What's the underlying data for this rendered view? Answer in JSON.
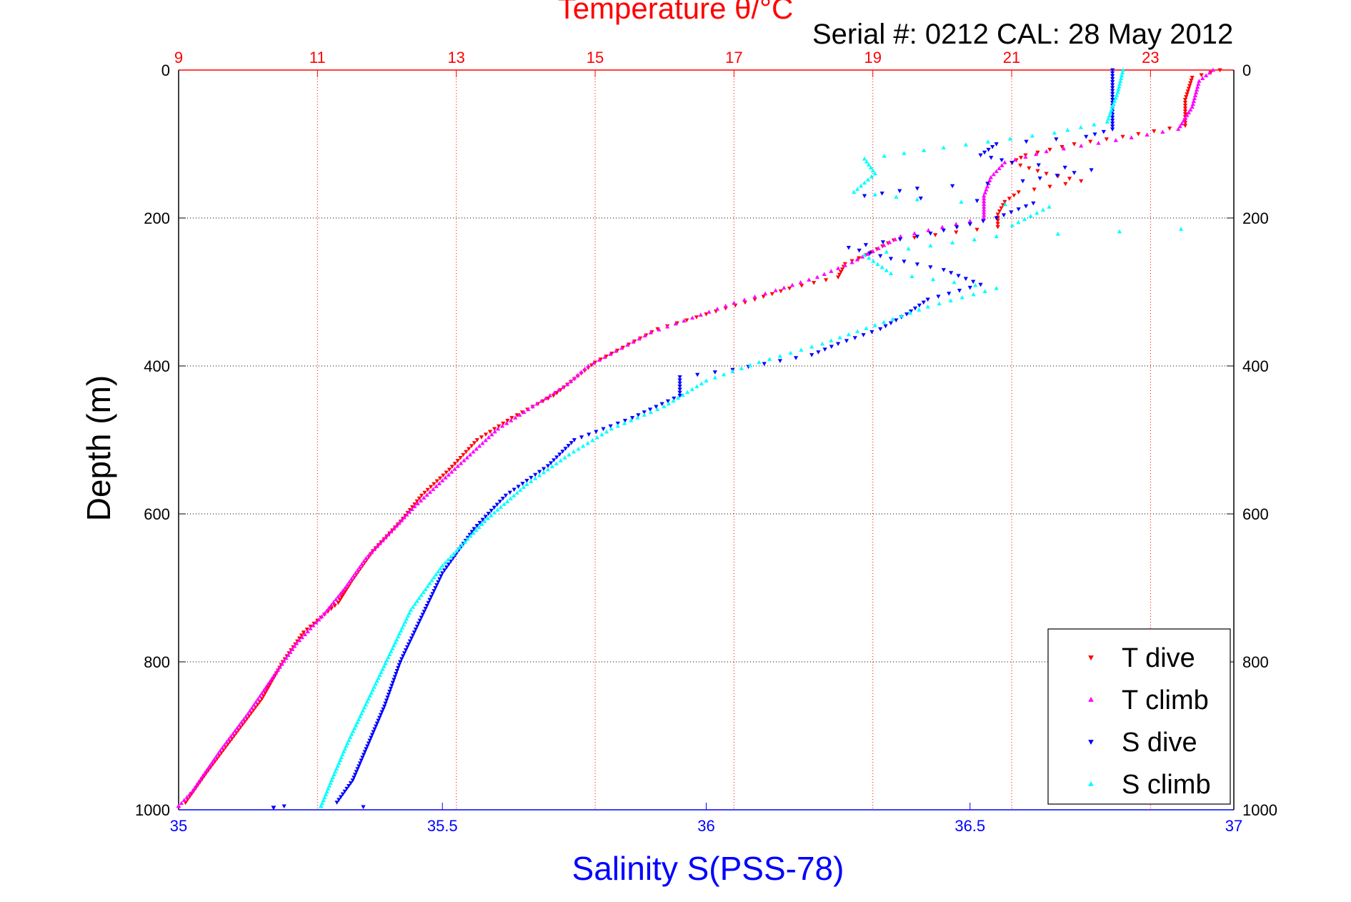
{
  "chart_data": {
    "type": "scatter",
    "top_title": "Temperature θ/°C",
    "serial_text": "Serial #: 0212  CAL: 28 May 2012",
    "ylabel": "Depth (m)",
    "xlabel": "Salinity S(PSS-78)",
    "y_axis": {
      "label": "Depth (m)",
      "range": [
        0,
        1000
      ],
      "reversed": true,
      "ticks": [
        "0",
        "200",
        "400",
        "600",
        "800",
        "1000"
      ]
    },
    "x_axis_bottom": {
      "label": "Salinity S(PSS-78)",
      "range": [
        35,
        37
      ],
      "ticks": [
        "35",
        "35.5",
        "36",
        "36.5",
        "37"
      ]
    },
    "x_axis_top": {
      "label": "Temperature θ/°C",
      "range": [
        9,
        24.2
      ],
      "ticks": [
        "9",
        "11",
        "13",
        "15",
        "17",
        "19",
        "21",
        "23"
      ]
    },
    "grid": true,
    "legend_position": "bottom-right",
    "colors": {
      "temperature": "#ff0000",
      "salinity": "#0000ff",
      "grid": "#000000"
    },
    "series": [
      {
        "name": "T dive",
        "axis": "temperature",
        "marker": "triangle-down",
        "color": "#ff0000",
        "points": [
          [
            24.0,
            0
          ],
          [
            23.6,
            10
          ],
          [
            23.5,
            40
          ],
          [
            23.5,
            75
          ],
          [
            22.6,
            90
          ],
          [
            21.9,
            100
          ],
          [
            21.2,
            115
          ],
          [
            21.0,
            125
          ],
          [
            21.5,
            140
          ],
          [
            22.0,
            150
          ],
          [
            21.1,
            165
          ],
          [
            20.9,
            178
          ],
          [
            20.8,
            195
          ],
          [
            20.8,
            212
          ],
          [
            19.3,
            230
          ],
          [
            18.9,
            250
          ],
          [
            18.6,
            262
          ],
          [
            18.5,
            280
          ],
          [
            17.8,
            295
          ],
          [
            17.3,
            310
          ],
          [
            16.6,
            330
          ],
          [
            15.9,
            350
          ],
          [
            15.4,
            375
          ],
          [
            15.0,
            395
          ],
          [
            14.8,
            410
          ],
          [
            14.4,
            440
          ],
          [
            13.8,
            470
          ],
          [
            13.3,
            500
          ],
          [
            12.9,
            540
          ],
          [
            12.5,
            575
          ],
          [
            12.2,
            610
          ],
          [
            11.8,
            650
          ],
          [
            11.5,
            690
          ],
          [
            11.3,
            720
          ],
          [
            10.8,
            760
          ],
          [
            10.5,
            800
          ],
          [
            10.2,
            850
          ],
          [
            9.8,
            900
          ],
          [
            9.4,
            950
          ],
          [
            9.1,
            990
          ]
        ]
      },
      {
        "name": "T climb",
        "axis": "temperature",
        "marker": "triangle-up",
        "color": "#ff00ff",
        "points": [
          [
            23.9,
            0
          ],
          [
            23.7,
            15
          ],
          [
            23.6,
            50
          ],
          [
            23.4,
            80
          ],
          [
            22.5,
            95
          ],
          [
            21.5,
            110
          ],
          [
            20.9,
            125
          ],
          [
            20.7,
            145
          ],
          [
            20.6,
            170
          ],
          [
            20.6,
            200
          ],
          [
            19.4,
            225
          ],
          [
            19.0,
            245
          ],
          [
            18.7,
            260
          ],
          [
            18.2,
            280
          ],
          [
            17.6,
            298
          ],
          [
            17.0,
            315
          ],
          [
            16.4,
            335
          ],
          [
            15.8,
            355
          ],
          [
            15.3,
            380
          ],
          [
            14.9,
            400
          ],
          [
            14.6,
            425
          ],
          [
            14.1,
            455
          ],
          [
            13.6,
            485
          ],
          [
            13.2,
            520
          ],
          [
            12.8,
            555
          ],
          [
            12.4,
            590
          ],
          [
            12.1,
            620
          ],
          [
            11.7,
            660
          ],
          [
            11.4,
            700
          ],
          [
            11.1,
            735
          ],
          [
            10.7,
            775
          ],
          [
            10.4,
            815
          ],
          [
            10.0,
            870
          ],
          [
            9.6,
            920
          ],
          [
            9.2,
            975
          ],
          [
            9.0,
            995
          ]
        ]
      },
      {
        "name": "S dive",
        "axis": "salinity",
        "marker": "triangle-down",
        "color": "#0000ff",
        "points": [
          [
            36.77,
            0
          ],
          [
            36.77,
            40
          ],
          [
            36.77,
            80
          ],
          [
            36.72,
            90
          ],
          [
            36.55,
            100
          ],
          [
            36.52,
            115
          ],
          [
            36.58,
            125
          ],
          [
            36.73,
            135
          ],
          [
            36.6,
            150
          ],
          [
            36.4,
            160
          ],
          [
            36.3,
            170
          ],
          [
            36.62,
            180
          ],
          [
            36.55,
            200
          ],
          [
            36.4,
            225
          ],
          [
            36.27,
            240
          ],
          [
            36.35,
            255
          ],
          [
            36.45,
            270
          ],
          [
            36.52,
            290
          ],
          [
            36.42,
            310
          ],
          [
            36.38,
            330
          ],
          [
            36.33,
            350
          ],
          [
            36.25,
            370
          ],
          [
            36.2,
            385
          ],
          [
            36.05,
            405
          ],
          [
            35.95,
            415
          ],
          [
            35.95,
            440
          ],
          [
            35.86,
            470
          ],
          [
            35.75,
            500
          ],
          [
            35.7,
            535
          ],
          [
            35.62,
            575
          ],
          [
            35.56,
            620
          ],
          [
            35.5,
            680
          ],
          [
            35.46,
            740
          ],
          [
            35.42,
            800
          ],
          [
            35.39,
            860
          ],
          [
            35.36,
            910
          ],
          [
            35.33,
            960
          ],
          [
            35.3,
            990
          ],
          [
            35.2,
            995
          ],
          [
            35.35,
            996
          ],
          [
            35.18,
            997
          ]
        ]
      },
      {
        "name": "S climb",
        "axis": "salinity",
        "marker": "triangle-up",
        "color": "#00ffff",
        "points": [
          [
            36.79,
            0
          ],
          [
            36.78,
            30
          ],
          [
            36.76,
            70
          ],
          [
            36.66,
            85
          ],
          [
            36.45,
            105
          ],
          [
            36.3,
            120
          ],
          [
            36.32,
            140
          ],
          [
            36.28,
            165
          ],
          [
            36.4,
            175
          ],
          [
            36.65,
            185
          ],
          [
            36.58,
            210
          ],
          [
            36.9,
            215
          ],
          [
            36.55,
            225
          ],
          [
            36.3,
            250
          ],
          [
            36.35,
            275
          ],
          [
            36.55,
            295
          ],
          [
            36.42,
            320
          ],
          [
            36.32,
            345
          ],
          [
            36.22,
            370
          ],
          [
            36.1,
            395
          ],
          [
            36.0,
            420
          ],
          [
            35.92,
            455
          ],
          [
            35.82,
            485
          ],
          [
            35.74,
            520
          ],
          [
            35.66,
            560
          ],
          [
            35.58,
            610
          ],
          [
            35.5,
            670
          ],
          [
            35.44,
            730
          ],
          [
            35.4,
            790
          ],
          [
            35.36,
            850
          ],
          [
            35.32,
            910
          ],
          [
            35.29,
            960
          ],
          [
            35.27,
            995
          ]
        ]
      }
    ]
  }
}
